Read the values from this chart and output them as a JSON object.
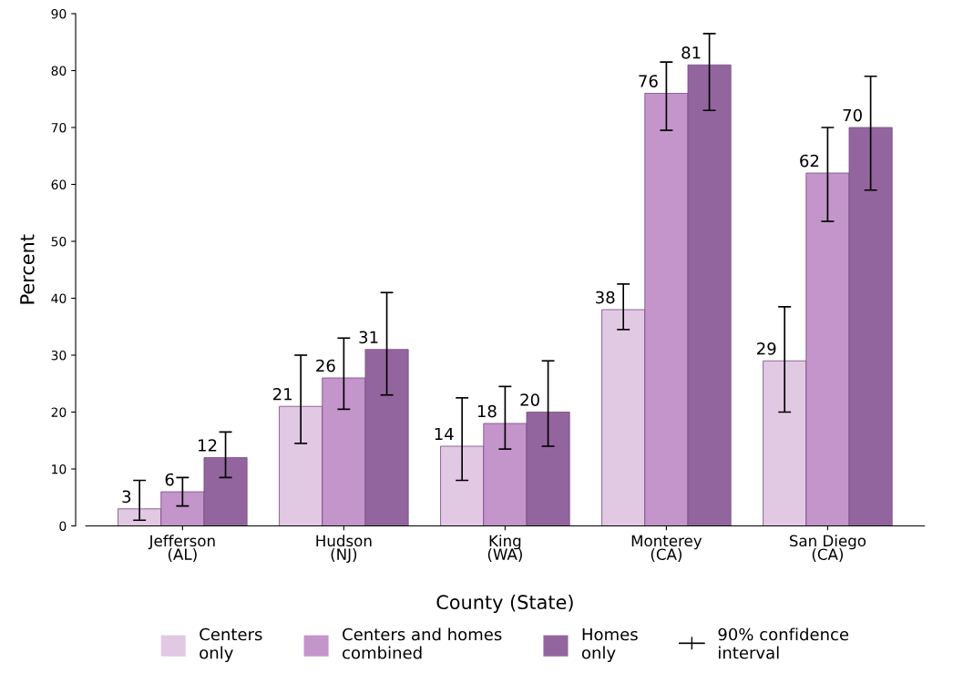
{
  "chart_data": {
    "type": "bar",
    "xlabel": "County (State)",
    "ylabel": "Percent",
    "categories": [
      "Jefferson\n(AL)",
      "Hudson\n(NJ)",
      "King\n(WA)",
      "Monterey\n(CA)",
      "San Diego\n(CA)"
    ],
    "series": [
      {
        "name": "Centers\nonly",
        "color": "#e2c9e3",
        "values": [
          3,
          21,
          14,
          38,
          29
        ],
        "errors": [
          [
            1,
            8
          ],
          [
            14.5,
            30
          ],
          [
            8,
            22.5
          ],
          [
            34.5,
            42.5
          ],
          [
            20,
            38.5
          ]
        ]
      },
      {
        "name": "Centers and homes\ncombined",
        "color": "#c495cb",
        "values": [
          6,
          26,
          18,
          76,
          62
        ],
        "errors": [
          [
            3.5,
            8.5
          ],
          [
            20.5,
            33
          ],
          [
            13.5,
            24.5
          ],
          [
            69.5,
            81.5
          ],
          [
            53.5,
            70
          ]
        ]
      },
      {
        "name": "Homes\nonly",
        "color": "#93659e",
        "values": [
          12,
          31,
          20,
          81,
          70
        ],
        "errors": [
          [
            8.5,
            16.5
          ],
          [
            23,
            41
          ],
          [
            14,
            29
          ],
          [
            73,
            86.5
          ],
          [
            59,
            79
          ]
        ]
      }
    ],
    "ylim": [
      0,
      90
    ],
    "yticks": [
      0,
      10,
      20,
      30,
      40,
      50,
      60,
      70,
      80,
      90
    ],
    "data_labels": true,
    "grid": false,
    "legend": "bottom",
    "annotations": [
      "90% confidence\ninterval"
    ]
  }
}
